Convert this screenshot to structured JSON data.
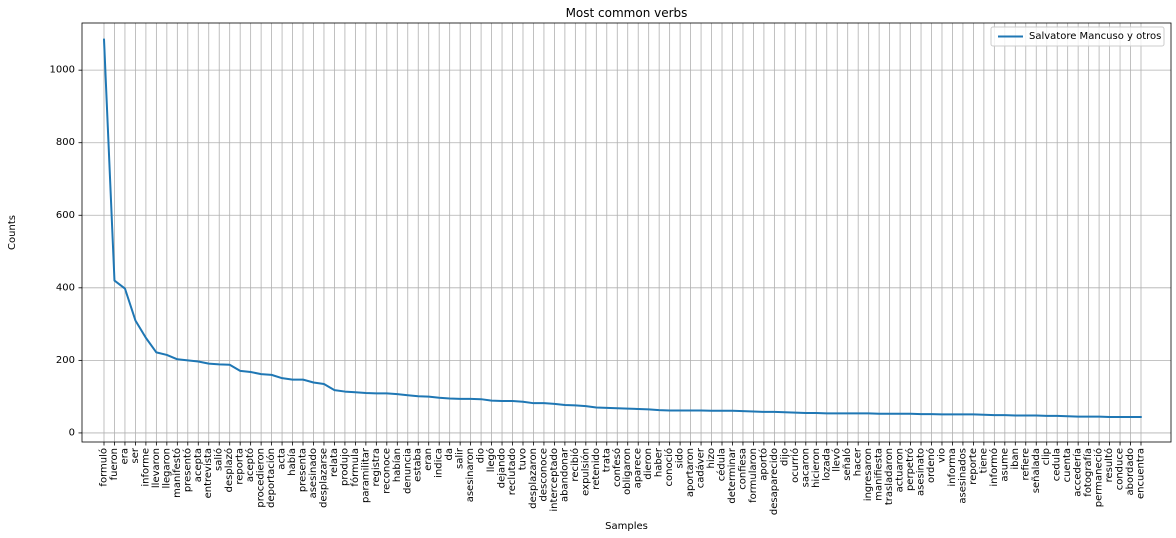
{
  "chart_data": {
    "type": "line",
    "title": "Most common verbs",
    "xlabel": "Samples",
    "ylabel": "Counts",
    "ylim": [
      -25,
      1130
    ],
    "yticks": [
      0,
      200,
      400,
      600,
      800,
      1000
    ],
    "grid": true,
    "legend_position": "top-right",
    "line_color": "#1f77b4",
    "categories": [
      "formuló",
      "fueron",
      "era",
      "ser",
      "informe",
      "llevaron",
      "llegaron",
      "manifestó",
      "presentó",
      "acepta",
      "entrevista",
      "salió",
      "desplazó",
      "reporta",
      "aceptó",
      "procedieron",
      "deportación",
      "acta",
      "había",
      "presenta",
      "asesinado",
      "desplazarse",
      "relata",
      "produjo",
      "fórmula",
      "paramilitar",
      "registra",
      "reconoce",
      "habían",
      "denuncia",
      "estaba",
      "eran",
      "indica",
      "da",
      "salir",
      "asesinaron",
      "dio",
      "llegó",
      "dejando",
      "reclutado",
      "tuvo",
      "desplazaron",
      "desconoce",
      "interceptado",
      "abandonar",
      "recibió",
      "expulsión",
      "retenido",
      "trata",
      "confesó",
      "obligaron",
      "aparece",
      "dieron",
      "haber",
      "conoció",
      "sido",
      "aportaron",
      "cadáver",
      "hizo",
      "cédula",
      "determinar",
      "confiesa",
      "formularon",
      "aportó",
      "desaparecido",
      "dijo",
      "ocurrió",
      "sacaron",
      "hicieron",
      "lozada",
      "llevó",
      "señaló",
      "hacer",
      "ingresaron",
      "manifiesta",
      "trasladaron",
      "actuaron",
      "perpetró",
      "asesinato",
      "ordenó",
      "vio",
      "informa",
      "asesinados",
      "reporte",
      "tiene",
      "informó",
      "asume",
      "iban",
      "refiere",
      "señalada",
      "clip",
      "cedula",
      "cuenta",
      "accedería",
      "fotografía",
      "permaneció",
      "resultó",
      "conduce",
      "abordado",
      "encuentra"
    ],
    "series": [
      {
        "name": "Salvatore Mancuso y otros",
        "values": [
          1085,
          420,
          398,
          310,
          262,
          222,
          215,
          203,
          200,
          197,
          191,
          189,
          188,
          171,
          168,
          162,
          160,
          151,
          147,
          147,
          139,
          135,
          118,
          114,
          112,
          110,
          109,
          109,
          107,
          104,
          101,
          100,
          97,
          95,
          94,
          94,
          93,
          89,
          88,
          88,
          86,
          82,
          82,
          80,
          77,
          76,
          74,
          70,
          69,
          68,
          67,
          66,
          65,
          63,
          62,
          62,
          62,
          62,
          61,
          61,
          61,
          60,
          59,
          58,
          58,
          57,
          56,
          55,
          55,
          54,
          54,
          54,
          54,
          54,
          53,
          53,
          53,
          53,
          52,
          52,
          51,
          51,
          51,
          51,
          50,
          49,
          49,
          48,
          48,
          48,
          47,
          47,
          46,
          45,
          45,
          45,
          44,
          44,
          44,
          44
        ]
      }
    ]
  }
}
